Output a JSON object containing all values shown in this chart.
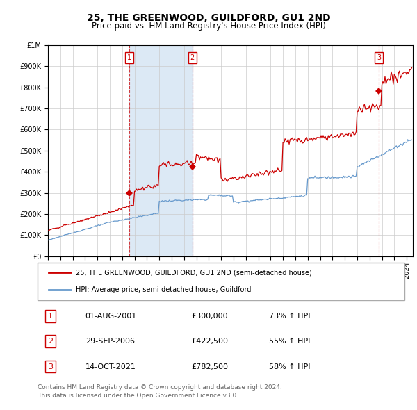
{
  "title": "25, THE GREENWOOD, GUILDFORD, GU1 2ND",
  "subtitle": "Price paid vs. HM Land Registry's House Price Index (HPI)",
  "legend_line1": "25, THE GREENWOOD, GUILDFORD, GU1 2ND (semi-detached house)",
  "legend_line2": "HPI: Average price, semi-detached house, Guildford",
  "footer1": "Contains HM Land Registry data © Crown copyright and database right 2024.",
  "footer2": "This data is licensed under the Open Government Licence v3.0.",
  "transactions": [
    {
      "num": 1,
      "date": "01-AUG-2001",
      "price": 300000,
      "pct": "73%",
      "dir": "↑"
    },
    {
      "num": 2,
      "date": "29-SEP-2006",
      "price": 422500,
      "pct": "55%",
      "dir": "↑"
    },
    {
      "num": 3,
      "date": "14-OCT-2021",
      "price": 782500,
      "pct": "58%",
      "dir": "↑"
    }
  ],
  "red_color": "#cc0000",
  "blue_color": "#6699cc",
  "plot_bg": "#ffffff",
  "grid_color": "#cccccc",
  "shade_color": "#dce9f5",
  "ylim": [
    0,
    1000000
  ],
  "yticks": [
    0,
    100000,
    200000,
    300000,
    400000,
    500000,
    600000,
    700000,
    800000,
    900000,
    1000000
  ],
  "xstart_year": 1995,
  "xend_year": 2024
}
